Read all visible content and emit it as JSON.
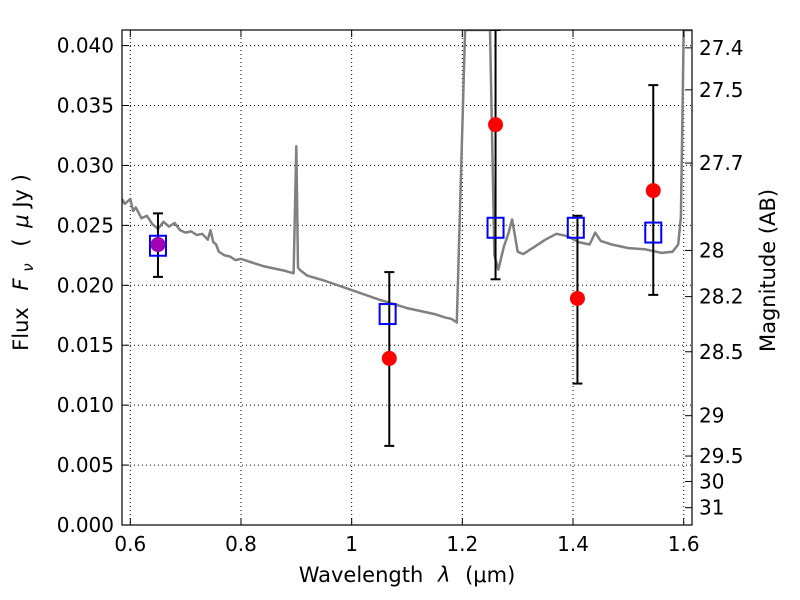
{
  "chart_data": {
    "type": "scatter",
    "xlabel_prefix": "Wavelength",
    "xlabel_lambda": "λ",
    "xlabel_unit": "(μm)",
    "ylabel_prefix": "Flux",
    "ylabel_F": "F",
    "ylabel_nu": "ν",
    "ylabel_unit_open": "(",
    "ylabel_unit_mu": "μ",
    "ylabel_unit_rest": "Jy )",
    "y2label": "Magnitude (AB)",
    "xlim": [
      0.585,
      1.615
    ],
    "ylim": [
      0.0,
      0.0413
    ],
    "x_ticks": [
      {
        "value": 0.6,
        "label": "0.6"
      },
      {
        "value": 0.8,
        "label": "0.8"
      },
      {
        "value": 1.0,
        "label": "1"
      },
      {
        "value": 1.2,
        "label": "1.2"
      },
      {
        "value": 1.4,
        "label": "1.4"
      },
      {
        "value": 1.6,
        "label": "1.6"
      }
    ],
    "y_ticks": [
      {
        "value": 0.0,
        "label": "0.000"
      },
      {
        "value": 0.005,
        "label": "0.005"
      },
      {
        "value": 0.01,
        "label": "0.010"
      },
      {
        "value": 0.015,
        "label": "0.015"
      },
      {
        "value": 0.02,
        "label": "0.020"
      },
      {
        "value": 0.025,
        "label": "0.025"
      },
      {
        "value": 0.03,
        "label": "0.030"
      },
      {
        "value": 0.035,
        "label": "0.035"
      },
      {
        "value": 0.04,
        "label": "0.040"
      }
    ],
    "mag_ticks": [
      {
        "mag": 27.4,
        "label": "27.4"
      },
      {
        "mag": 27.5,
        "label": "27.5"
      },
      {
        "mag": 27.7,
        "label": "27.7"
      },
      {
        "mag": 28.0,
        "label": "28"
      },
      {
        "mag": 28.2,
        "label": "28.2"
      },
      {
        "mag": 28.5,
        "label": "28.5"
      },
      {
        "mag": 29.0,
        "label": "29"
      },
      {
        "mag": 29.5,
        "label": "29.5"
      },
      {
        "mag": 30.0,
        "label": "30"
      },
      {
        "mag": 31.0,
        "label": "31"
      }
    ],
    "series": [
      {
        "kind": "observed",
        "color": "#ff0000",
        "points": [
          {
            "x": 0.65,
            "y": 0.0234,
            "yerr_low": 0.0207,
            "yerr_high": 0.026
          },
          {
            "x": 1.068,
            "y": 0.0139,
            "yerr_low": 0.0066,
            "yerr_high": 0.0211
          },
          {
            "x": 1.26,
            "y": 0.0334,
            "yerr_low": 0.0205,
            "yerr_high": 0.0413
          },
          {
            "x": 1.408,
            "y": 0.0189,
            "yerr_low": 0.0118,
            "yerr_high": 0.0258
          },
          {
            "x": 1.545,
            "y": 0.0279,
            "yerr_low": 0.0192,
            "yerr_high": 0.0367
          }
        ]
      },
      {
        "kind": "model-photometry",
        "color": "#0000ff",
        "points": [
          {
            "x": 0.65,
            "y": 0.0233
          },
          {
            "x": 1.065,
            "y": 0.0176
          },
          {
            "x": 1.26,
            "y": 0.0248
          },
          {
            "x": 1.405,
            "y": 0.0248
          },
          {
            "x": 1.545,
            "y": 0.0244
          }
        ]
      },
      {
        "kind": "model-spectrum",
        "color": "#808080",
        "x": [
          0.585,
          0.59,
          0.6,
          0.605,
          0.61,
          0.62,
          0.63,
          0.64,
          0.65,
          0.66,
          0.67,
          0.68,
          0.69,
          0.7,
          0.71,
          0.72,
          0.73,
          0.74,
          0.745,
          0.75,
          0.755,
          0.76,
          0.77,
          0.78,
          0.79,
          0.8,
          0.82,
          0.84,
          0.86,
          0.88,
          0.895,
          0.9,
          0.903,
          0.906,
          0.92,
          0.95,
          1.0,
          1.05,
          1.1,
          1.15,
          1.17,
          1.18,
          1.19,
          1.205,
          1.21,
          1.215,
          1.22,
          1.225,
          1.23,
          1.235,
          1.24,
          1.245,
          1.25,
          1.258,
          1.265,
          1.275,
          1.283,
          1.29,
          1.3,
          1.31,
          1.33,
          1.35,
          1.37,
          1.39,
          1.41,
          1.43,
          1.44,
          1.45,
          1.47,
          1.5,
          1.53,
          1.56,
          1.58,
          1.59,
          1.595,
          1.6,
          1.605,
          1.61,
          1.615
        ],
        "y": [
          0.0272,
          0.0268,
          0.0272,
          0.0262,
          0.0265,
          0.0256,
          0.0258,
          0.0251,
          0.0247,
          0.0253,
          0.0249,
          0.0252,
          0.0246,
          0.0244,
          0.0245,
          0.0242,
          0.0243,
          0.0238,
          0.0246,
          0.0236,
          0.0234,
          0.0228,
          0.0225,
          0.0224,
          0.0221,
          0.0222,
          0.0219,
          0.0216,
          0.0214,
          0.0212,
          0.021,
          0.0316,
          0.0215,
          0.0213,
          0.0208,
          0.0204,
          0.0196,
          0.0188,
          0.0181,
          0.0176,
          0.0173,
          0.0172,
          0.0169,
          0.0413,
          0.0413,
          0.0413,
          0.0413,
          0.0413,
          0.0413,
          0.0413,
          0.0413,
          0.0413,
          0.0413,
          0.0225,
          0.0213,
          0.0232,
          0.0243,
          0.0255,
          0.0228,
          0.0226,
          0.0232,
          0.0238,
          0.0243,
          0.0241,
          0.0236,
          0.0234,
          0.0244,
          0.0237,
          0.0234,
          0.0231,
          0.023,
          0.0227,
          0.0228,
          0.0234,
          0.0257,
          0.0413,
          0.0413,
          0.0413,
          0.0413
        ]
      }
    ],
    "overlap_color": "#a000b0",
    "grid": true
  }
}
